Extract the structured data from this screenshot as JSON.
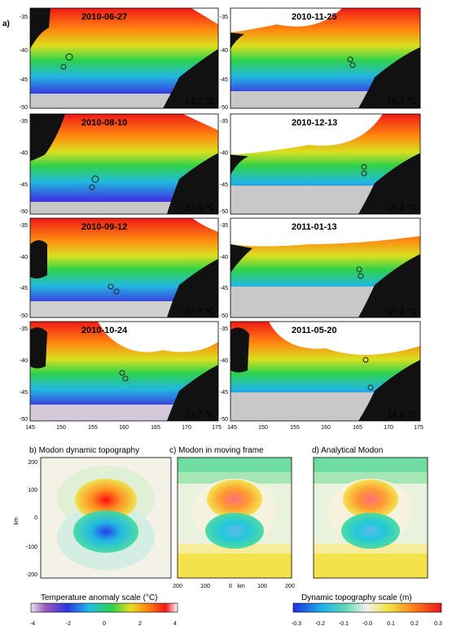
{
  "panel_a": {
    "label": "a)",
    "maps": [
      {
        "date": "2010-06-27",
        "temp": "13.7 °C"
      },
      {
        "date": "2010-11-25",
        "temp": "15.1 °C"
      },
      {
        "date": "2010-08-10",
        "temp": "13.0 °C"
      },
      {
        "date": "2010-12-13",
        "temp": "16.3 °C"
      },
      {
        "date": "2010-09-12",
        "temp": "12.7 °C"
      },
      {
        "date": "2011-01-13",
        "temp": "17.3 °C"
      },
      {
        "date": "2010-10-24",
        "temp": "12.7 °C"
      },
      {
        "date": "2011-05-20",
        "temp": "14.5 °C"
      }
    ],
    "lat_ticks": [
      "-35",
      "-40",
      "-45",
      "-50"
    ],
    "lon_ticks": [
      "145",
      "150",
      "155",
      "160",
      "165",
      "170",
      "175"
    ]
  },
  "panel_b": {
    "title": "b) Modon dynamic topography",
    "ylabel": "km",
    "yticks": [
      "200",
      "100",
      "0",
      "-100",
      "-200"
    ]
  },
  "panel_c": {
    "title": "c) Modon in moving frame",
    "xticks": [
      "200",
      "100",
      "0",
      "km",
      "100",
      "200"
    ]
  },
  "panel_d": {
    "title": "d) Analytical Modon"
  },
  "colorbar_temp": {
    "title": "Temperature anomaly scale (°C)",
    "ticks": [
      "-4",
      "-2",
      "0",
      "2",
      "4"
    ]
  },
  "colorbar_topo": {
    "title": "Dynamic topography scale (m)",
    "ticks": [
      "-0.3",
      "-0.2",
      "-0.1",
      "-0.0",
      "0.1",
      "0.2",
      "0.3"
    ]
  }
}
